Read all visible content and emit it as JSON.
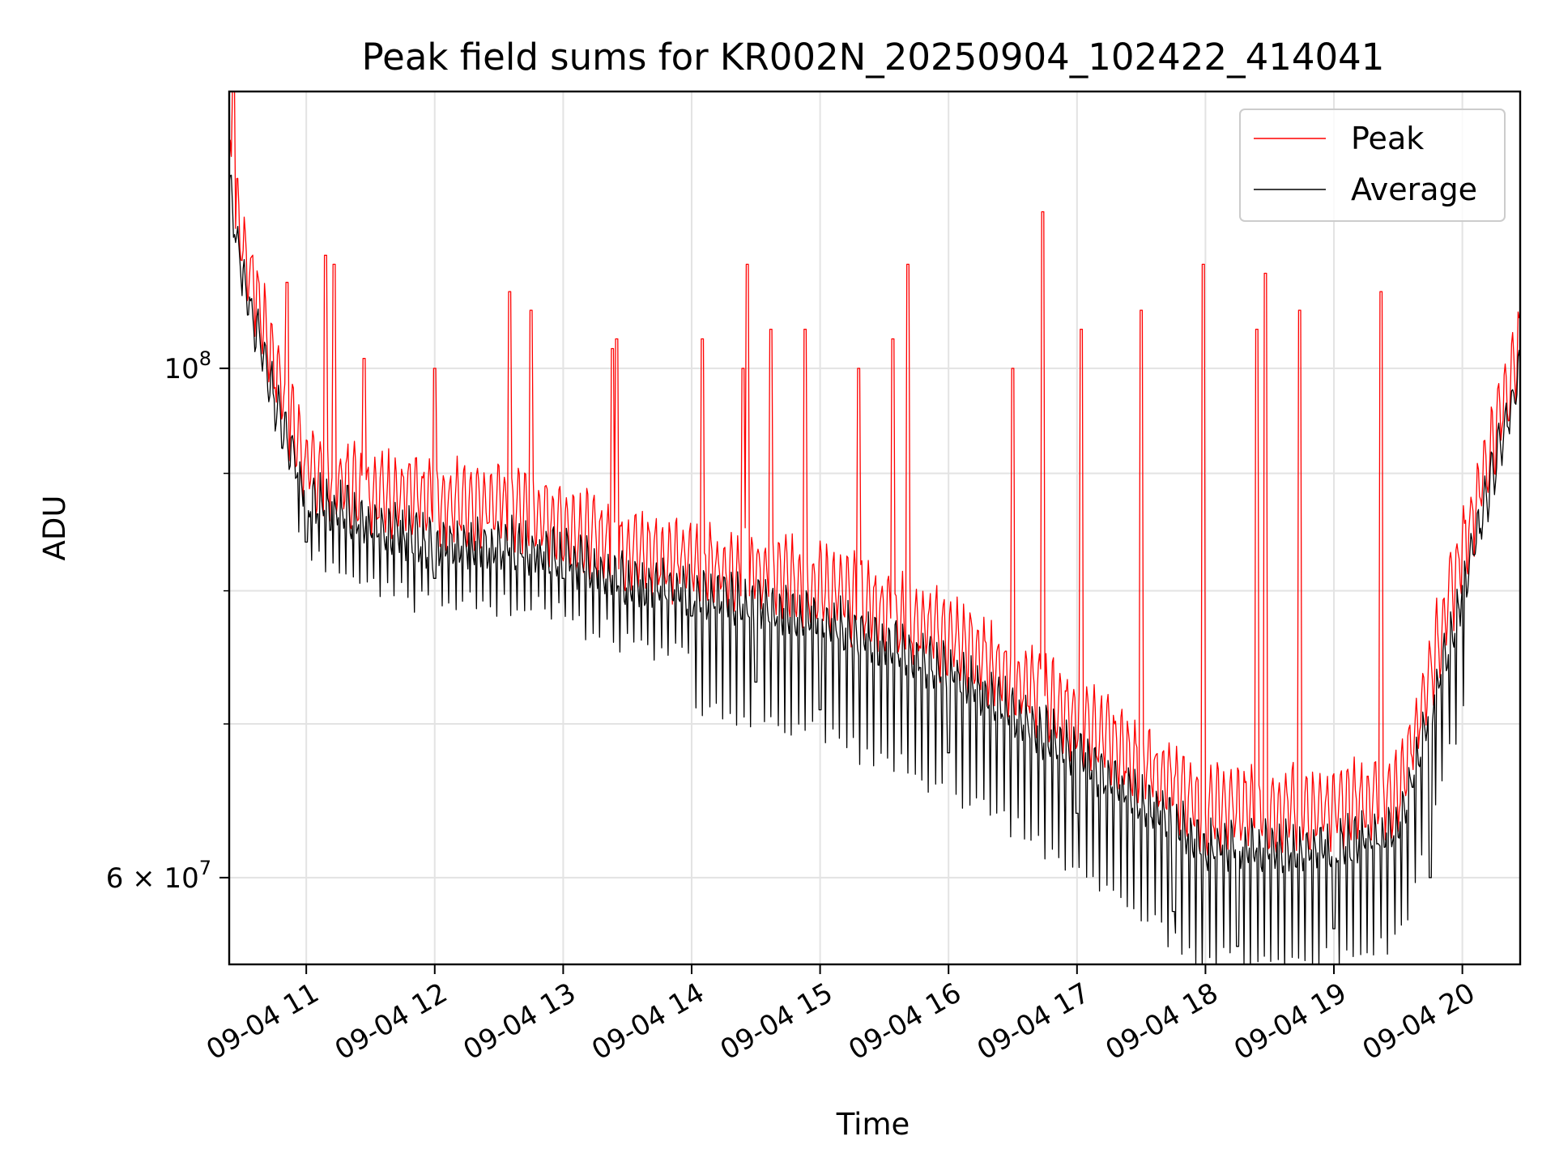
{
  "chart_data": {
    "type": "line",
    "title": "Peak field sums for KR002N_20250904_102422_414041",
    "xlabel": "Time",
    "ylabel": "ADU",
    "y_scale": "log",
    "ylim": [
      55000000,
      132000000
    ],
    "xlim": [
      "2025-09-04 10:24",
      "2025-09-04 20:27"
    ],
    "grid": true,
    "legend_position": "upper right",
    "x_ticks": [
      "09-04 11",
      "09-04 12",
      "09-04 13",
      "09-04 14",
      "09-04 15",
      "09-04 16",
      "09-04 17",
      "09-04 18",
      "09-04 19",
      "09-04 20"
    ],
    "y_ticks_labeled": [
      {
        "value": 100000000,
        "base": "10",
        "exp": "8",
        "coef": ""
      },
      {
        "value": 60000000,
        "base": "10",
        "exp": "7",
        "coef": "6 × "
      }
    ],
    "y_ticks_minor": [
      70000000,
      80000000,
      90000000
    ],
    "series": [
      {
        "name": "Peak",
        "color": "#ff0000",
        "x": [
          "2025-09-04 10:24",
          "2025-09-04 10:30",
          "2025-09-04 10:45",
          "2025-09-04 11:00",
          "2025-09-04 11:30",
          "2025-09-04 12:00",
          "2025-09-04 12:30",
          "2025-09-04 13:00",
          "2025-09-04 13:30",
          "2025-09-04 14:00",
          "2025-09-04 14:30",
          "2025-09-04 15:00",
          "2025-09-04 15:30",
          "2025-09-04 16:00",
          "2025-09-04 16:30",
          "2025-09-04 17:00",
          "2025-09-04 17:30",
          "2025-09-04 18:00",
          "2025-09-04 18:30",
          "2025-09-04 19:00",
          "2025-09-04 19:30",
          "2025-09-04 20:00",
          "2025-09-04 20:27"
        ],
        "values": [
          122000000,
          113000000,
          100000000,
          90000000,
          88000000,
          87000000,
          87000000,
          85000000,
          83000000,
          82000000,
          81000000,
          80000000,
          78000000,
          76000000,
          73000000,
          70000000,
          67000000,
          64000000,
          64000000,
          64000000,
          65000000,
          83000000,
          102000000
        ],
        "spikes": [
          {
            "x": "2025-09-04 10:26",
            "y": 132000000
          },
          {
            "x": "2025-09-04 10:51",
            "y": 109000000
          },
          {
            "x": "2025-09-04 11:09",
            "y": 112000000
          },
          {
            "x": "2025-09-04 11:13",
            "y": 111000000
          },
          {
            "x": "2025-09-04 11:27",
            "y": 101000000
          },
          {
            "x": "2025-09-04 12:00",
            "y": 100000000
          },
          {
            "x": "2025-09-04 12:35",
            "y": 108000000
          },
          {
            "x": "2025-09-04 12:45",
            "y": 106000000
          },
          {
            "x": "2025-09-04 13:23",
            "y": 102000000
          },
          {
            "x": "2025-09-04 13:25",
            "y": 103000000
          },
          {
            "x": "2025-09-04 14:05",
            "y": 103000000
          },
          {
            "x": "2025-09-04 14:24",
            "y": 100000000
          },
          {
            "x": "2025-09-04 14:26",
            "y": 111000000
          },
          {
            "x": "2025-09-04 14:37",
            "y": 104000000
          },
          {
            "x": "2025-09-04 14:53",
            "y": 104000000
          },
          {
            "x": "2025-09-04 15:18",
            "y": 100000000
          },
          {
            "x": "2025-09-04 15:34",
            "y": 103000000
          },
          {
            "x": "2025-09-04 15:41",
            "y": 111000000
          },
          {
            "x": "2025-09-04 16:30",
            "y": 100000000
          },
          {
            "x": "2025-09-04 16:44",
            "y": 117000000
          },
          {
            "x": "2025-09-04 17:02",
            "y": 104000000
          },
          {
            "x": "2025-09-04 17:30",
            "y": 106000000
          },
          {
            "x": "2025-09-04 17:59",
            "y": 111000000
          },
          {
            "x": "2025-09-04 18:24",
            "y": 104000000
          },
          {
            "x": "2025-09-04 18:28",
            "y": 110000000
          },
          {
            "x": "2025-09-04 18:44",
            "y": 106000000
          },
          {
            "x": "2025-09-04 19:22",
            "y": 108000000
          }
        ]
      },
      {
        "name": "Average",
        "color": "#000000",
        "x": [
          "2025-09-04 10:24",
          "2025-09-04 10:30",
          "2025-09-04 10:45",
          "2025-09-04 11:00",
          "2025-09-04 11:30",
          "2025-09-04 12:00",
          "2025-09-04 12:30",
          "2025-09-04 13:00",
          "2025-09-04 13:30",
          "2025-09-04 14:00",
          "2025-09-04 14:30",
          "2025-09-04 15:00",
          "2025-09-04 15:30",
          "2025-09-04 16:00",
          "2025-09-04 16:30",
          "2025-09-04 17:00",
          "2025-09-04 17:30",
          "2025-09-04 18:00",
          "2025-09-04 18:30",
          "2025-09-04 19:00",
          "2025-09-04 19:30",
          "2025-09-04 20:00",
          "2025-09-04 20:27"
        ],
        "values": [
          120000000,
          110000000,
          97000000,
          88000000,
          86000000,
          84000000,
          84000000,
          83000000,
          81000000,
          80000000,
          79000000,
          78000000,
          76000000,
          74000000,
          71000000,
          68000000,
          65000000,
          62000000,
          62000000,
          62000000,
          63000000,
          80000000,
          100000000
        ],
        "dips": [
          {
            "x": "2025-09-04 11:00",
            "y": 84000000
          },
          {
            "x": "2025-09-04 12:00",
            "y": 81000000
          },
          {
            "x": "2025-09-04 13:00",
            "y": 81000000
          },
          {
            "x": "2025-09-04 14:00",
            "y": 78000000
          },
          {
            "x": "2025-09-04 14:30",
            "y": 73000000
          },
          {
            "x": "2025-09-04 15:00",
            "y": 71000000
          },
          {
            "x": "2025-09-04 16:00",
            "y": 68000000
          },
          {
            "x": "2025-09-04 17:00",
            "y": 64000000
          },
          {
            "x": "2025-09-04 17:45",
            "y": 58000000
          },
          {
            "x": "2025-09-04 18:15",
            "y": 56000000
          },
          {
            "x": "2025-09-04 19:00",
            "y": 57000000
          },
          {
            "x": "2025-09-04 19:45",
            "y": 60000000
          }
        ]
      }
    ]
  }
}
